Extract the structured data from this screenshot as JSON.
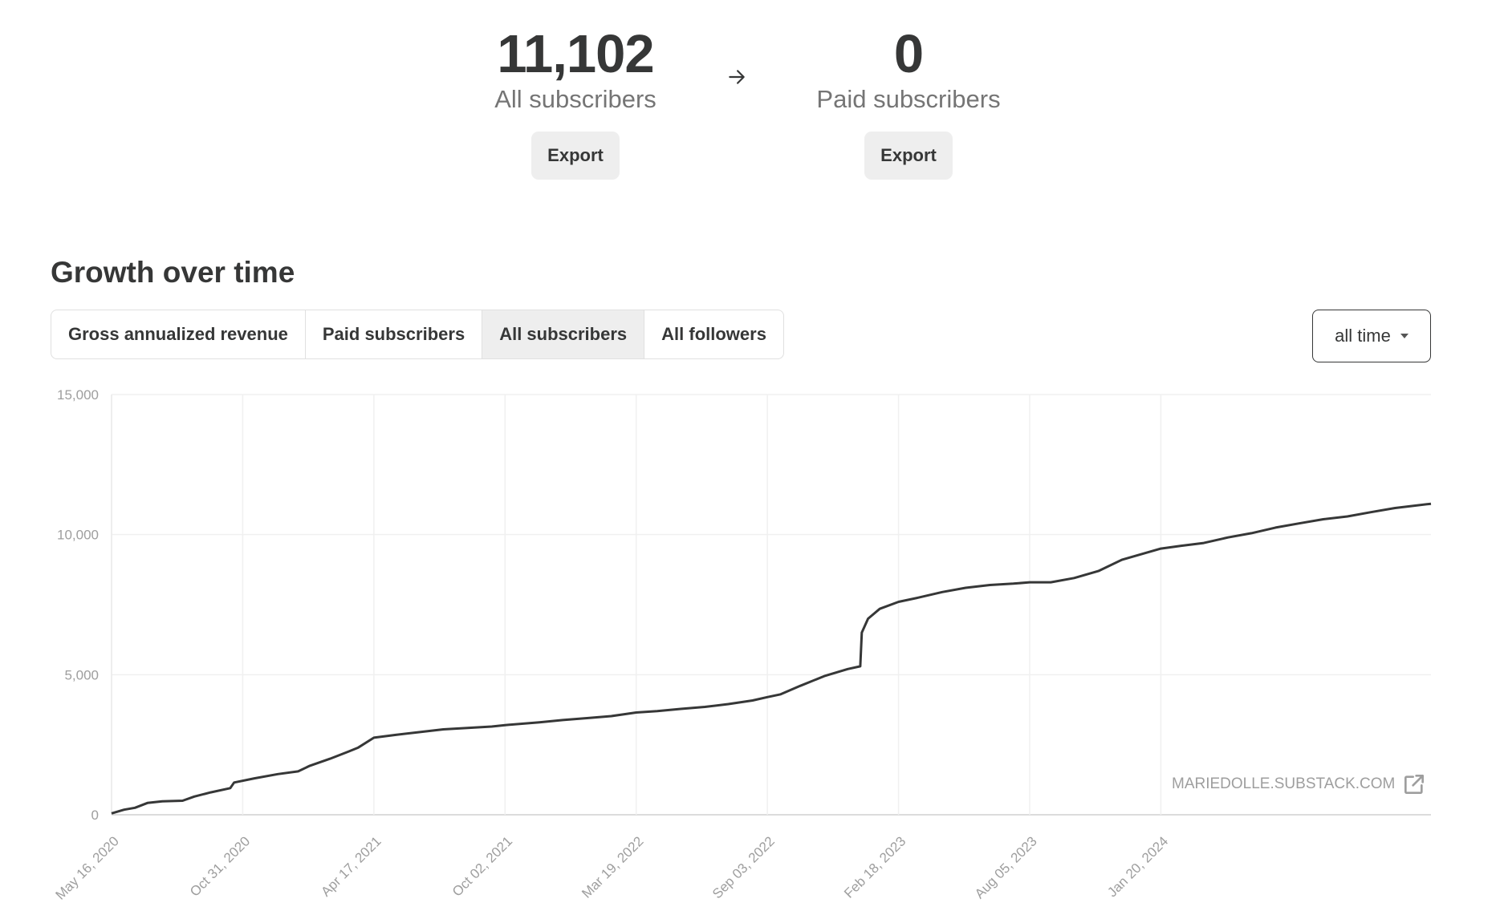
{
  "summary": {
    "all_subscribers": {
      "value": "11,102",
      "label": "All subscribers",
      "export_label": "Export"
    },
    "paid_subscribers": {
      "value": "0",
      "label": "Paid subscribers",
      "export_label": "Export"
    },
    "arrow_icon": "arrow-right-icon"
  },
  "growth": {
    "title": "Growth over time",
    "tabs": [
      {
        "label": "Gross annualized revenue",
        "active": false
      },
      {
        "label": "Paid subscribers",
        "active": false
      },
      {
        "label": "All subscribers",
        "active": true
      },
      {
        "label": "All followers",
        "active": false
      }
    ],
    "range": {
      "selected": "all time",
      "icon": "caret-down-icon"
    },
    "watermark": {
      "text": "MARIEDOLLE.SUBSTACK.COM",
      "icon": "external-link-icon"
    }
  },
  "colors": {
    "line": "#363737",
    "grid": "#f0f0f0",
    "axis": "#d0d0d0",
    "tick_text": "#9e9e9e",
    "active_tab": "#eeeeee"
  },
  "chart_data": {
    "type": "line",
    "title": "",
    "xlabel": "",
    "ylabel": "",
    "ylim": [
      0,
      15000
    ],
    "yticks": [
      0,
      5000,
      10000,
      15000
    ],
    "ytick_labels": [
      "0",
      "5,000",
      "10,000",
      "15,000"
    ],
    "xlim": [
      "2020-05-16",
      "2024-12-31"
    ],
    "xticks": [
      "2020-05-16",
      "2020-10-31",
      "2021-04-17",
      "2021-10-02",
      "2022-03-19",
      "2022-09-03",
      "2023-02-18",
      "2023-08-05",
      "2024-01-20"
    ],
    "xtick_labels": [
      "May 16, 2020",
      "Oct 31, 2020",
      "Apr 17, 2021",
      "Oct 02, 2021",
      "Mar 19, 2022",
      "Sep 03, 2022",
      "Feb 18, 2023",
      "Aug 05, 2023",
      "Jan 20, 2024"
    ],
    "grid": true,
    "series": [
      {
        "x": [
          "2020-05-16",
          "2020-06-01",
          "2020-06-15",
          "2020-07-01",
          "2020-07-20",
          "2020-08-15",
          "2020-08-30",
          "2020-09-20",
          "2020-10-15",
          "2020-10-20",
          "2020-11-15",
          "2020-12-15",
          "2021-01-10",
          "2021-01-25",
          "2021-02-20",
          "2021-03-15",
          "2021-03-28",
          "2021-04-17",
          "2021-05-15",
          "2021-06-15",
          "2021-07-15",
          "2021-08-15",
          "2021-09-15",
          "2021-10-02",
          "2021-11-15",
          "2021-12-15",
          "2022-01-15",
          "2022-02-15",
          "2022-03-19",
          "2022-04-15",
          "2022-05-15",
          "2022-06-15",
          "2022-07-15",
          "2022-08-15",
          "2022-09-03",
          "2022-09-20",
          "2022-10-15",
          "2022-11-15",
          "2022-12-15",
          "2022-12-31",
          "2023-01-02",
          "2023-01-10",
          "2023-01-25",
          "2023-02-18",
          "2023-03-15",
          "2023-04-15",
          "2023-05-15",
          "2023-06-15",
          "2023-07-15",
          "2023-08-05",
          "2023-09-01",
          "2023-10-01",
          "2023-11-01",
          "2023-12-01",
          "2024-01-20",
          "2024-02-15",
          "2024-03-15",
          "2024-04-15",
          "2024-05-15",
          "2024-06-15",
          "2024-07-15",
          "2024-08-15",
          "2024-09-15",
          "2024-10-15",
          "2024-11-15",
          "2024-12-31"
        ],
        "values": [
          50,
          180,
          250,
          420,
          480,
          500,
          650,
          800,
          950,
          1150,
          1300,
          1450,
          1550,
          1750,
          2000,
          2250,
          2400,
          2750,
          2850,
          2950,
          3050,
          3100,
          3150,
          3200,
          3300,
          3380,
          3450,
          3520,
          3650,
          3700,
          3780,
          3850,
          3950,
          4080,
          4200,
          4300,
          4600,
          4950,
          5200,
          5300,
          6500,
          7000,
          7350,
          7600,
          7750,
          7950,
          8100,
          8200,
          8250,
          8300,
          8300,
          8450,
          8700,
          9100,
          9500,
          9600,
          9700,
          9900,
          10050,
          10250,
          10400,
          10550,
          10650,
          10800,
          10950,
          11102
        ]
      }
    ]
  }
}
